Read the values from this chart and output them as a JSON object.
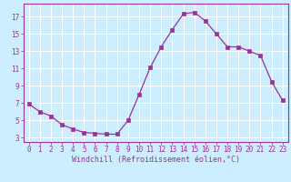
{
  "x": [
    0,
    1,
    2,
    3,
    4,
    5,
    6,
    7,
    8,
    9,
    10,
    11,
    12,
    13,
    14,
    15,
    16,
    17,
    18,
    19,
    20,
    21,
    22,
    23
  ],
  "y": [
    6.9,
    6.0,
    5.5,
    4.5,
    4.0,
    3.6,
    3.5,
    3.4,
    3.4,
    5.0,
    8.0,
    11.1,
    13.5,
    15.5,
    17.3,
    17.5,
    16.5,
    15.0,
    13.5,
    13.5,
    13.0,
    12.5,
    9.5,
    7.3
  ],
  "line_color": "#993399",
  "marker_color": "#993399",
  "bg_color": "#cceeff",
  "grid_color": "#ffffff",
  "xlabel": "Windchill (Refroidissement éolien,°C)",
  "xlabel_color": "#993399",
  "xlim": [
    -0.5,
    23.5
  ],
  "ylim": [
    2.5,
    18.5
  ],
  "yticks": [
    3,
    5,
    7,
    9,
    11,
    13,
    15,
    17
  ],
  "xticks": [
    0,
    1,
    2,
    3,
    4,
    5,
    6,
    7,
    8,
    9,
    10,
    11,
    12,
    13,
    14,
    15,
    16,
    17,
    18,
    19,
    20,
    21,
    22,
    23
  ],
  "tick_color": "#993399",
  "spine_color": "#993399",
  "tick_fontsize": 5.5,
  "xlabel_fontsize": 6.0
}
